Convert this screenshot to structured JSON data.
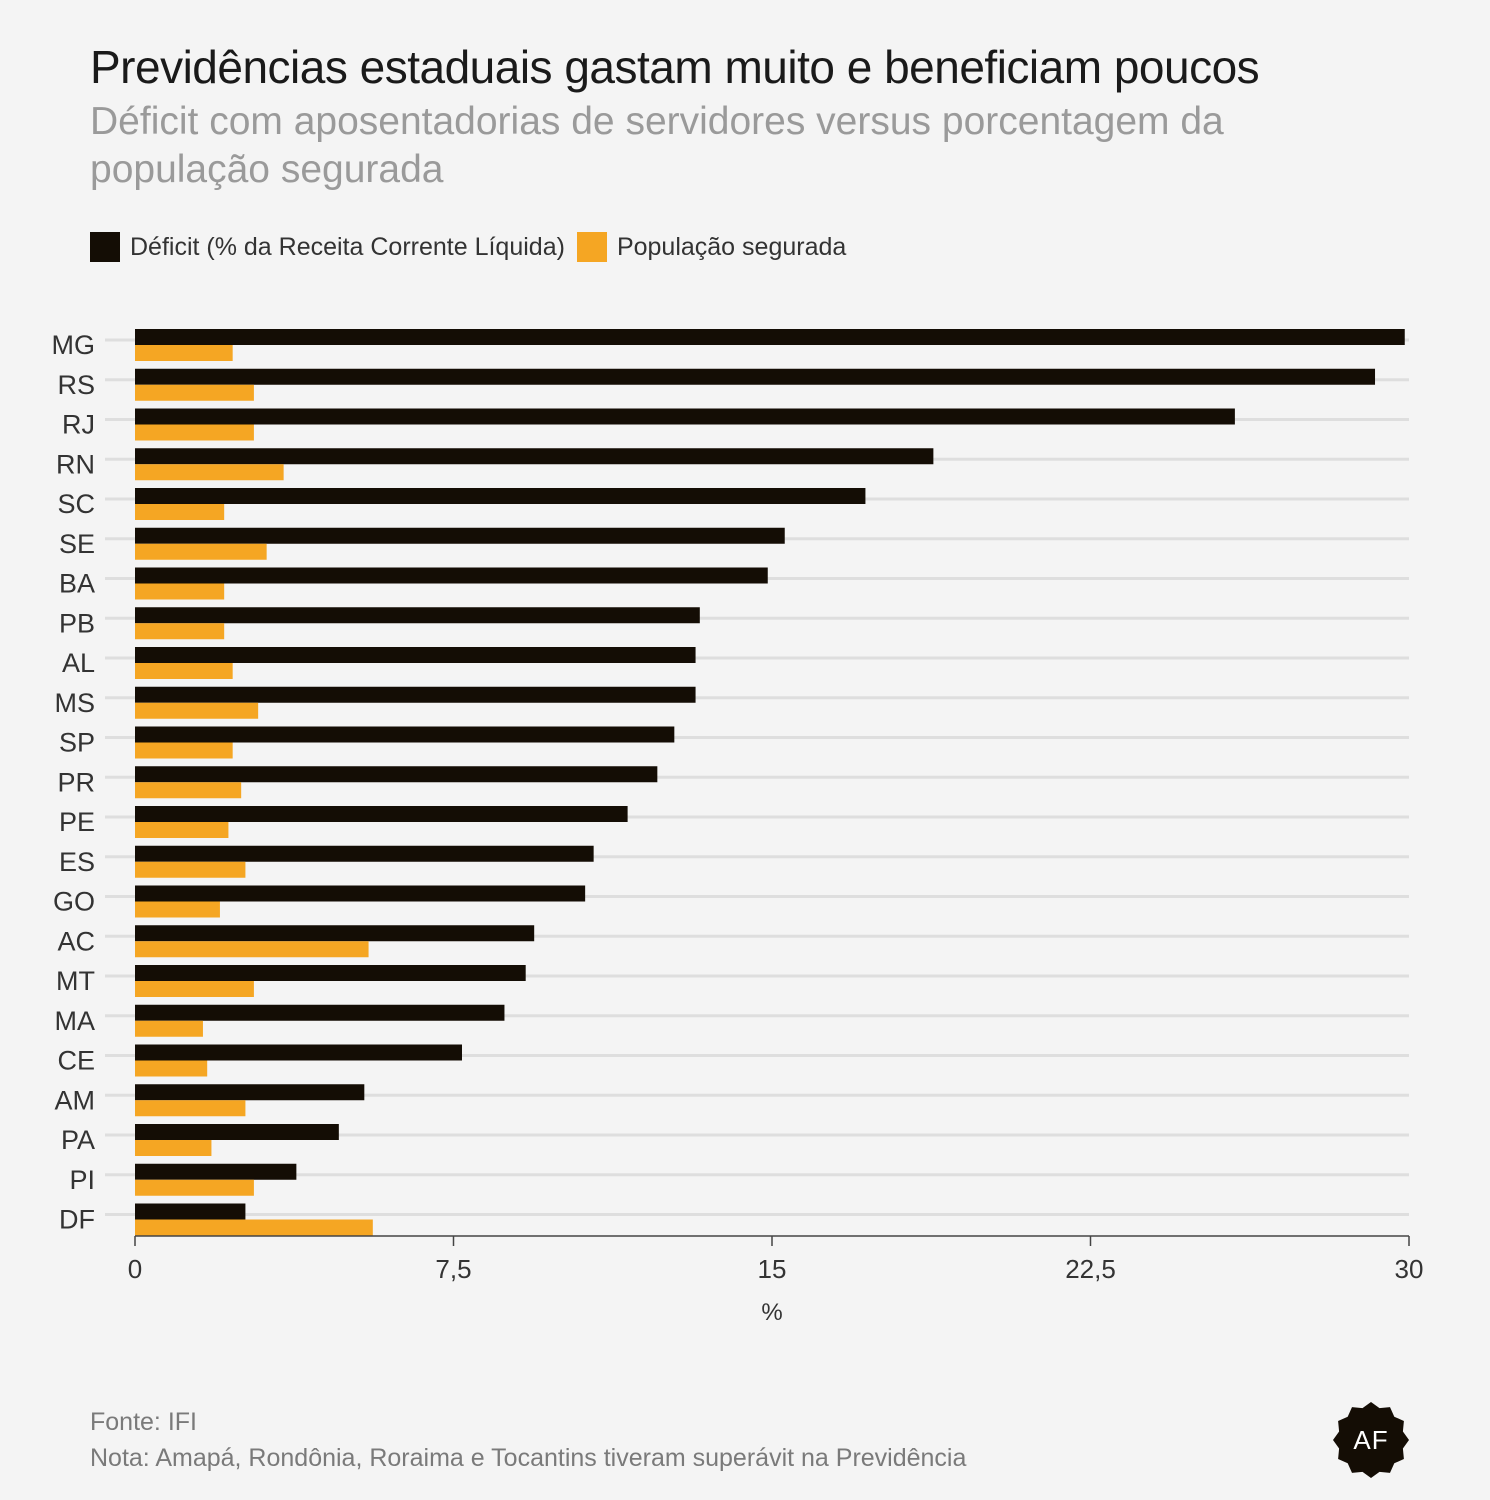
{
  "header": {
    "title": "Previdências estaduais gastam muito e beneficiam poucos",
    "subtitle": "Déficit com aposentadorias de servidores versus porcentagem da população segurada"
  },
  "legend": [
    {
      "label": "Déficit (% da Receita Corrente Líquida)",
      "color": "#140d05"
    },
    {
      "label": "População segurada",
      "color": "#f5a623"
    }
  ],
  "chart_data": {
    "type": "bar",
    "orientation": "horizontal",
    "categories": [
      "MG",
      "RS",
      "RJ",
      "RN",
      "SC",
      "SE",
      "BA",
      "PB",
      "AL",
      "MS",
      "SP",
      "PR",
      "PE",
      "ES",
      "GO",
      "AC",
      "MT",
      "MA",
      "CE",
      "AM",
      "PA",
      "PI",
      "DF"
    ],
    "series": [
      {
        "name": "Déficit (% da Receita Corrente Líquida)",
        "color": "#140d05",
        "values": [
          29.9,
          29.2,
          25.9,
          18.8,
          17.2,
          15.3,
          14.9,
          13.3,
          13.2,
          13.2,
          12.7,
          12.3,
          11.6,
          10.8,
          10.6,
          9.4,
          9.2,
          8.7,
          7.7,
          5.4,
          4.8,
          3.8,
          2.6
        ]
      },
      {
        "name": "População segurada",
        "color": "#f5a623",
        "values": [
          2.3,
          2.8,
          2.8,
          3.5,
          2.1,
          3.1,
          2.1,
          2.1,
          2.3,
          2.9,
          2.3,
          2.5,
          2.2,
          2.6,
          2.0,
          5.5,
          2.8,
          1.6,
          1.7,
          2.6,
          1.8,
          2.8,
          5.6
        ]
      }
    ],
    "xlim": [
      0,
      30
    ],
    "xticks": [
      "0",
      "7,5",
      "15",
      "22,5",
      "30"
    ],
    "xtick_values": [
      0,
      7.5,
      15,
      22.5,
      30
    ],
    "xlabel": "%",
    "ylabel": "",
    "grid": true,
    "legend_position": "top-left"
  },
  "footer": {
    "source": "Fonte: IFI",
    "note": "Nota: Amapá, Rondônia, Roraima e Tocantins tiveram superávit na Previdência"
  },
  "logo": {
    "text": "AF",
    "color": "#140d05"
  }
}
